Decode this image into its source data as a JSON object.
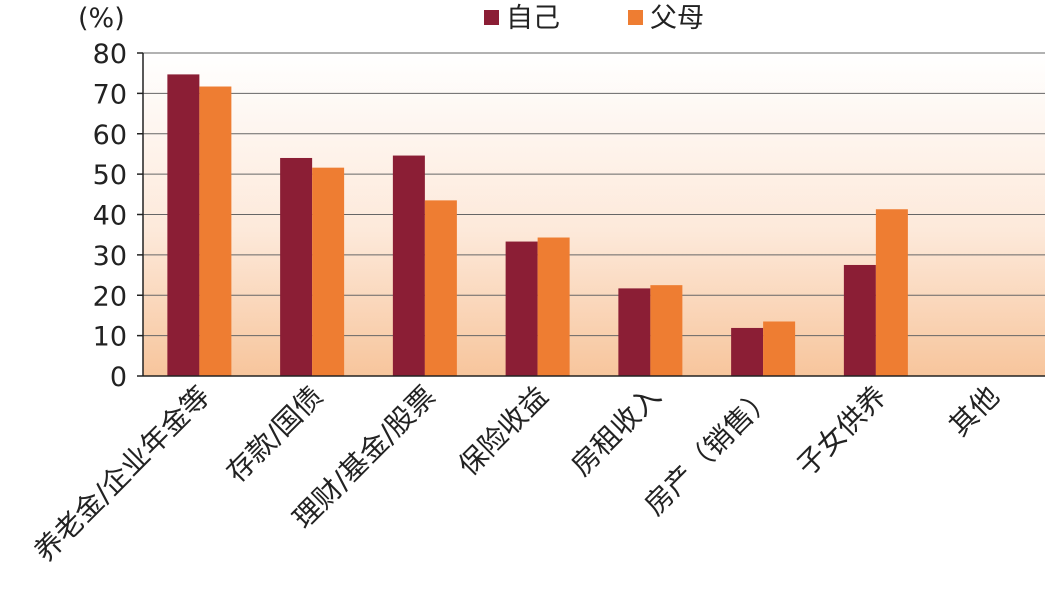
{
  "chart_data": {
    "type": "bar",
    "title": "",
    "unit_label": "(%)",
    "xlabel": "",
    "ylabel": "",
    "ylim": [
      0,
      80
    ],
    "yticks": [
      0,
      10,
      20,
      30,
      40,
      50,
      60,
      70,
      80
    ],
    "grid": true,
    "legend_position": "top-center",
    "categories": [
      "养老金/企业年金等",
      "存款/国债",
      "理财/基金/股票",
      "保险收益",
      "房租收入",
      "房产（销售）",
      "子女供养",
      "其他"
    ],
    "series": [
      {
        "name": "自己",
        "color": "#8b1e35",
        "values": [
          74.7,
          54.0,
          54.6,
          33.3,
          21.7,
          11.9,
          27.5,
          0
        ]
      },
      {
        "name": "父母",
        "color": "#ee7d32",
        "values": [
          71.7,
          51.6,
          43.5,
          34.3,
          22.5,
          13.5,
          41.3,
          0
        ]
      }
    ]
  }
}
